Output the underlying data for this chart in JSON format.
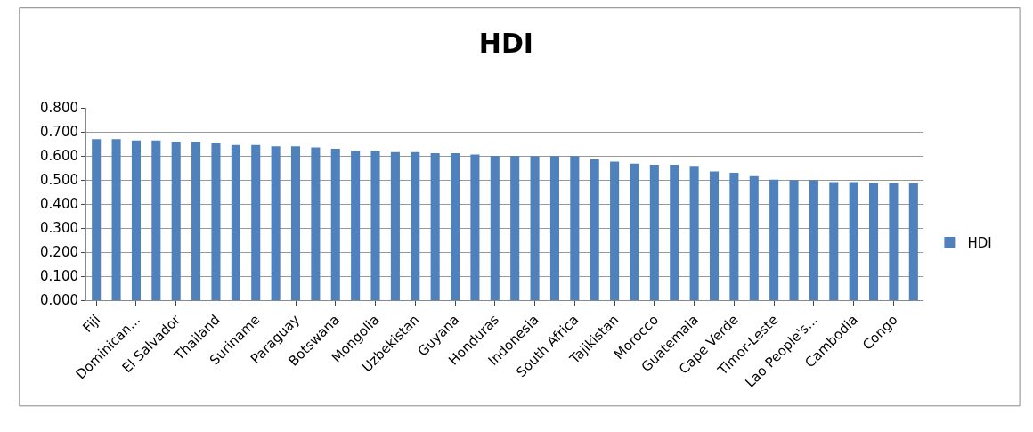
{
  "chart_data": {
    "type": "bar",
    "title": "HDI",
    "categories": [
      "Fiji",
      null,
      "Dominican...",
      null,
      "El Salvador",
      null,
      "Thailand",
      null,
      "Suriname",
      null,
      "Paraguay",
      null,
      "Botswana",
      null,
      "Mongolia",
      null,
      "Uzbekistan",
      null,
      "Guyana",
      null,
      "Honduras",
      null,
      "Indonesia",
      null,
      "South Africa",
      null,
      "Tajikistan",
      null,
      "Morocco",
      null,
      "Guatemala",
      null,
      "Cape Verde",
      null,
      "Timor-Leste",
      null,
      "Lao People's...",
      null,
      "Cambodia",
      null,
      "Congo",
      null
    ],
    "series": [
      {
        "name": "HDI",
        "color": "#4f81bd",
        "values": [
          0.669,
          0.669,
          0.664,
          0.664,
          0.659,
          0.659,
          0.654,
          0.645,
          0.645,
          0.64,
          0.64,
          0.635,
          0.63,
          0.621,
          0.621,
          0.616,
          0.616,
          0.611,
          0.611,
          0.606,
          0.6,
          0.6,
          0.599,
          0.599,
          0.599,
          0.586,
          0.576,
          0.568,
          0.563,
          0.563,
          0.558,
          0.535,
          0.53,
          0.516,
          0.501,
          0.499,
          0.499,
          0.491,
          0.491,
          0.486,
          0.486,
          0.486
        ]
      }
    ],
    "ylim": [
      0,
      0.8
    ],
    "yticks": [
      {
        "value": 0,
        "label": "0.000"
      },
      {
        "value": 0.1,
        "label": "0.100"
      },
      {
        "value": 0.2,
        "label": "0.200"
      },
      {
        "value": 0.3,
        "label": "0.300"
      },
      {
        "value": 0.4,
        "label": "0.400"
      },
      {
        "value": 0.5,
        "label": "0.500"
      },
      {
        "value": 0.6,
        "label": "0.600"
      },
      {
        "value": 0.7,
        "label": "0.700"
      },
      {
        "value": 0.8,
        "label": "0.800"
      }
    ],
    "grid": "y",
    "legend": "right"
  }
}
